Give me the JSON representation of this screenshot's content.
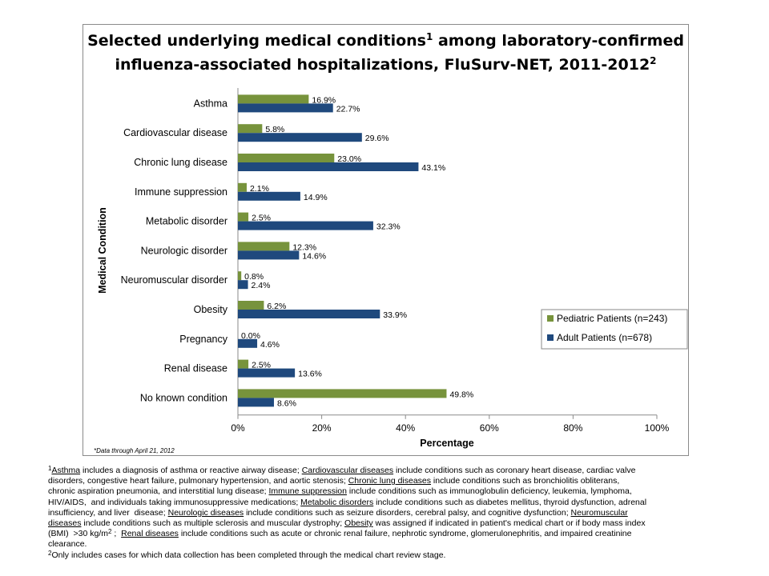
{
  "chart_data": {
    "type": "bar",
    "orientation": "horizontal",
    "title_line1": "Selected underlying medical conditions",
    "title_sup1": "1",
    "title_mid": " among laboratory-confirmed",
    "title_line2": "influenza-associated hospitalizations, FluSurv-NET, 2011-2012",
    "title_sup2": "2",
    "xlabel": "Percentage",
    "ylabel": "Medical Condition",
    "xlim": [
      0,
      100
    ],
    "xticks": [
      "0%",
      "20%",
      "40%",
      "60%",
      "80%",
      "100%"
    ],
    "grid": false,
    "legend_position": "right",
    "note": "*Data through April 21, 2012",
    "categories": [
      "Asthma",
      "Cardiovascular disease",
      "Chronic lung disease",
      "Immune suppression",
      "Metabolic disorder",
      "Neurologic disorder",
      "Neuromuscular disorder",
      "Obesity",
      "Pregnancy",
      "Renal disease",
      "No known condition"
    ],
    "series": [
      {
        "name": "Pediatric Patients (n=243)",
        "color": "#77933C",
        "values": [
          16.9,
          5.8,
          23.0,
          2.1,
          2.5,
          12.3,
          0.8,
          6.2,
          0.0,
          2.5,
          49.8
        ],
        "labels": [
          "16.9%",
          "5.8%",
          "23.0%",
          "2.1%",
          "2.5%",
          "12.3%",
          "0.8%",
          "6.2%",
          "0.0%",
          "2.5%",
          "49.8%"
        ]
      },
      {
        "name": "Adult Patients (n=678)",
        "color": "#1F497D",
        "values": [
          22.7,
          29.6,
          43.1,
          14.9,
          32.3,
          14.6,
          2.4,
          33.9,
          4.6,
          13.6,
          8.6
        ],
        "labels": [
          "22.7%",
          "29.6%",
          "43.1%",
          "14.9%",
          "32.3%",
          "14.6%",
          "2.4%",
          "33.9%",
          "4.6%",
          "13.6%",
          "8.6%"
        ]
      }
    ]
  },
  "footnotes": [
    [
      [
        "s",
        "1"
      ],
      [
        "u",
        "Asthma"
      ],
      [
        "t",
        " includes a diagnosis of asthma or reactive airway disease; "
      ],
      [
        "u",
        "Cardiovascular diseases"
      ],
      [
        "t",
        " include conditions such as coronary heart disease, cardiac valve"
      ]
    ],
    [
      [
        "t",
        "disorders, congestive heart failure, pulmonary hypertension, and aortic stenosis; "
      ],
      [
        "u",
        "Chronic lung diseases"
      ],
      [
        "t",
        " include conditions such as bronchiolitis obliterans,"
      ]
    ],
    [
      [
        "t",
        "chronic aspiration pneumonia, and interstitial lung disease; "
      ],
      [
        "u",
        "Immune suppression"
      ],
      [
        "t",
        " include conditions such as immunoglobulin deficiency, leukemia, lymphoma,"
      ]
    ],
    [
      [
        "t",
        "HIV/AIDS,  and individuals taking immunosuppressive medications; "
      ],
      [
        "u",
        "Metabolic disorders"
      ],
      [
        "t",
        " include conditions such as diabetes mellitus, thyroid dysfunction, adrenal"
      ]
    ],
    [
      [
        "t",
        "insufficiency, and liver  disease; "
      ],
      [
        "u",
        "Neurologic diseases"
      ],
      [
        "t",
        " include conditions such as seizure disorders, cerebral palsy, and cognitive dysfunction; "
      ],
      [
        "u",
        "Neuromuscular"
      ]
    ],
    [
      [
        "u",
        "diseases"
      ],
      [
        "t",
        " include conditions such as multiple sclerosis and muscular dystrophy; "
      ],
      [
        "u",
        "Obesity"
      ],
      [
        "t",
        " was assigned if indicated in patient's medical chart or if body mass index"
      ]
    ],
    [
      [
        "t",
        "(BMI)  >30 kg/m"
      ],
      [
        "s",
        "2"
      ],
      [
        "t",
        " ;  "
      ],
      [
        "u",
        "Renal diseases"
      ],
      [
        "t",
        " include conditions such as acute or chronic renal failure, nephrotic syndrome, glomerulonephritis, and impaired creatinine"
      ]
    ],
    [
      [
        "t",
        "clearance."
      ]
    ],
    [
      [
        "s",
        "2"
      ],
      [
        "t",
        "Only includes cases for which data collection has been completed through the medical chart review stage."
      ]
    ]
  ]
}
